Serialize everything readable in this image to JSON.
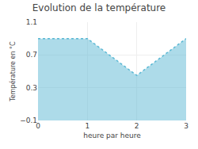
{
  "chart_data": {
    "type": "area",
    "title": "Evolution de la température",
    "x_label": "heure par heure",
    "y_label": "Température en °C",
    "x": [
      0,
      1,
      2,
      3
    ],
    "values": [
      0.9,
      0.9,
      0.45,
      0.9
    ],
    "color": "#5bb8d4",
    "line_style": "dot",
    "xlim": [
      0,
      3
    ],
    "xticks": [
      0,
      1,
      2,
      3
    ],
    "ylim": [
      -0.1,
      1.1
    ],
    "yticks": [
      -0.1,
      0.3,
      0.7,
      1.1
    ],
    "grid": true
  }
}
